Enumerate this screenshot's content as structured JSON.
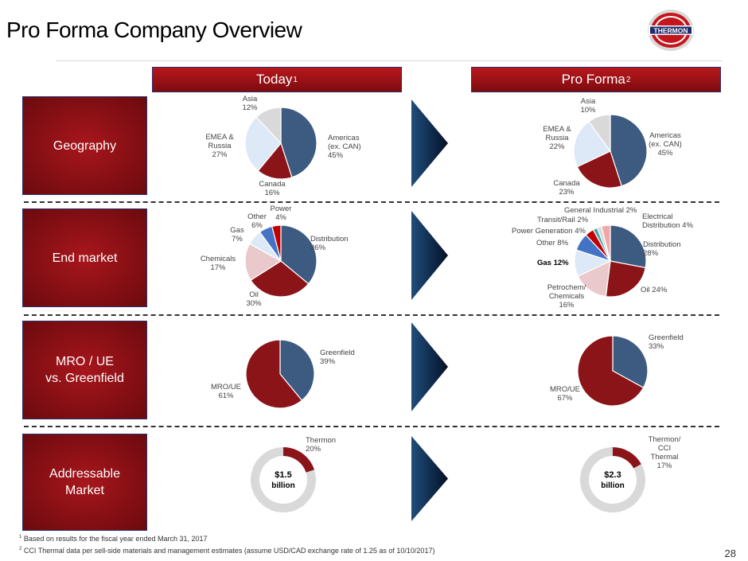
{
  "title": "Pro Forma Company Overview",
  "logo_text": "THERMON",
  "headers": {
    "today": {
      "label": "Today",
      "sup": "1"
    },
    "proforma": {
      "label": "Pro Forma",
      "sup": "2"
    }
  },
  "rows": {
    "geography": "Geography",
    "end_market": "End market",
    "mro_line1": "MRO / UE",
    "mro_line2": "vs. Greenfield",
    "addr_line1": "Addressable",
    "addr_line2": "Market"
  },
  "colors": {
    "navy": "#3d5a80",
    "red": "#8b1419",
    "lightblue": "#dde9f7",
    "gray": "#d9d9d9",
    "pink": "#e9c9cb",
    "blue": "#4472c4",
    "brightred": "#c00000",
    "teal": "#4aa8a8",
    "salmon": "#f2a7a7"
  },
  "chart_data": [
    {
      "id": "geo_today",
      "type": "pie",
      "title": "Geography - Today",
      "slices": [
        {
          "name": "Americas (ex. CAN)",
          "lines": [
            "Americas",
            "(ex. CAN)",
            "45%"
          ],
          "value": 45,
          "color": "navy"
        },
        {
          "name": "Canada",
          "lines": [
            "Canada",
            "16%"
          ],
          "value": 16,
          "color": "red"
        },
        {
          "name": "EMEA & Russia",
          "lines": [
            "EMEA &",
            "Russia",
            "27%"
          ],
          "value": 27,
          "color": "lightblue"
        },
        {
          "name": "Asia",
          "lines": [
            "Asia",
            "12%"
          ],
          "value": 12,
          "color": "gray"
        }
      ]
    },
    {
      "id": "geo_pf",
      "type": "pie",
      "title": "Geography - Pro Forma",
      "slices": [
        {
          "name": "Americas (ex. CAN)",
          "lines": [
            "Americas",
            "(ex. CAN)",
            "45%"
          ],
          "value": 45,
          "color": "navy"
        },
        {
          "name": "Canada",
          "lines": [
            "Canada",
            "23%"
          ],
          "value": 23,
          "color": "red"
        },
        {
          "name": "EMEA & Russia",
          "lines": [
            "EMEA &",
            "Russia",
            "22%"
          ],
          "value": 22,
          "color": "lightblue"
        },
        {
          "name": "Asia",
          "lines": [
            "Asia",
            "10%"
          ],
          "value": 10,
          "color": "gray"
        }
      ]
    },
    {
      "id": "end_today",
      "type": "pie",
      "title": "End market - Today",
      "slices": [
        {
          "name": "Distribution",
          "lines": [
            "Distribution",
            "36%"
          ],
          "value": 36,
          "color": "navy"
        },
        {
          "name": "Oil",
          "lines": [
            "Oil",
            "30%"
          ],
          "value": 30,
          "color": "red"
        },
        {
          "name": "Chemicals",
          "lines": [
            "Chemicals",
            "17%"
          ],
          "value": 17,
          "color": "pink"
        },
        {
          "name": "Gas",
          "lines": [
            "Gas",
            "7%"
          ],
          "value": 7,
          "color": "lightblue"
        },
        {
          "name": "Other",
          "lines": [
            "Other",
            "6%"
          ],
          "value": 6,
          "color": "blue"
        },
        {
          "name": "Power",
          "lines": [
            "Power",
            "4%"
          ],
          "value": 4,
          "color": "brightred"
        }
      ]
    },
    {
      "id": "end_pf",
      "type": "pie",
      "title": "End market - Pro Forma",
      "slices": [
        {
          "name": "Distribution",
          "lines": [
            "Distribution",
            "28%"
          ],
          "value": 28,
          "color": "navy"
        },
        {
          "name": "Oil",
          "lines": [
            "Oil  24%"
          ],
          "value": 24,
          "color": "red"
        },
        {
          "name": "Petrochem/ Chemicals",
          "lines": [
            "Petrochem/",
            "Chemicals",
            "16%"
          ],
          "value": 16,
          "color": "pink"
        },
        {
          "name": "Gas",
          "lines": [
            "Gas 12%"
          ],
          "value": 12,
          "color": "lightblue",
          "bold": true
        },
        {
          "name": "Other",
          "lines": [
            "Other 8%"
          ],
          "value": 8,
          "color": "blue"
        },
        {
          "name": "Power Generation",
          "lines": [
            "Power Generation 4%"
          ],
          "value": 4,
          "color": "brightred"
        },
        {
          "name": "Transit/Rail",
          "lines": [
            "Transit/Rail 2%"
          ],
          "value": 2,
          "color": "teal"
        },
        {
          "name": "General Industrial",
          "lines": [
            "General Industrial 2%"
          ],
          "value": 2,
          "color": "gray"
        },
        {
          "name": "Electrical Distribution",
          "lines": [
            "Electrical",
            "Distribution 4%"
          ],
          "value": 4,
          "color": "salmon"
        }
      ]
    },
    {
      "id": "mro_today",
      "type": "pie",
      "title": "MRO / UE vs. Greenfield - Today",
      "slices": [
        {
          "name": "Greenfield",
          "lines": [
            "Greenfield",
            "39%"
          ],
          "value": 39,
          "color": "navy"
        },
        {
          "name": "MRO/UE",
          "lines": [
            "MRO/UE",
            "61%"
          ],
          "value": 61,
          "color": "red"
        }
      ]
    },
    {
      "id": "mro_pf",
      "type": "pie",
      "title": "MRO / UE vs. Greenfield - Pro Forma",
      "slices": [
        {
          "name": "Greenfield",
          "lines": [
            "Greenfield",
            "33%"
          ],
          "value": 33,
          "color": "navy"
        },
        {
          "name": "MRO/UE",
          "lines": [
            "MRO/UE",
            "67%"
          ],
          "value": 67,
          "color": "red"
        }
      ]
    },
    {
      "id": "addr_today",
      "type": "donut",
      "title": "Addressable Market - Today",
      "center": [
        "$1.5",
        "billion"
      ],
      "slices": [
        {
          "name": "Thermon",
          "lines": [
            "Thermon",
            "20%"
          ],
          "value": 20,
          "color": "red"
        },
        {
          "name": "Rest",
          "lines": [],
          "value": 80,
          "color": "gray"
        }
      ]
    },
    {
      "id": "addr_pf",
      "type": "donut",
      "title": "Addressable Market - Pro Forma",
      "center": [
        "$2.3",
        "billion"
      ],
      "slices": [
        {
          "name": "Thermon/ CCI Thermal",
          "lines": [
            "Thermon/",
            "CCI",
            "Thermal",
            "17%"
          ],
          "value": 17,
          "color": "red"
        },
        {
          "name": "Rest",
          "lines": [],
          "value": 83,
          "color": "gray"
        }
      ]
    }
  ],
  "footnotes": {
    "f1_mark": "1",
    "f1": "Based on results for the fiscal year ended March 31, 2017",
    "f2_mark": "2",
    "f2": "CCI Thermal data per sell-side materials and management estimates (assume USD/CAD exchange rate of 1.25 as of 10/10/2017)"
  },
  "page_number": "28"
}
